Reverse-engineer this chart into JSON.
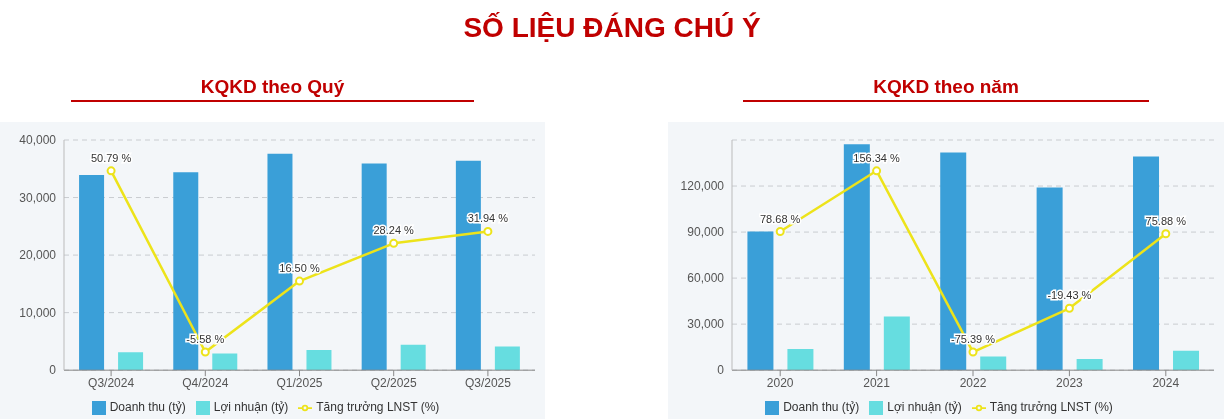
{
  "chart_data": [
    {
      "type": "bar",
      "title": "KQKD theo Quý",
      "annotations": [
        "SỐ LIỆU ĐÁNG CHÚ Ý"
      ],
      "categories": [
        "Q3/2024",
        "Q4/2024",
        "Q1/2025",
        "Q2/2025",
        "Q3/2025"
      ],
      "series": [
        {
          "name": "Doanh thu (tỷ)",
          "color": "#3a9fd8",
          "values": [
            33900,
            34400,
            37600,
            35900,
            36400
          ]
        },
        {
          "name": "Lợi nhuận (tỷ)",
          "color": "#66dde0",
          "values": [
            3100,
            2900,
            3500,
            4400,
            4100
          ]
        },
        {
          "name": "Tăng trưởng LNST (%)",
          "type": "line",
          "axis": "y2",
          "color": "#ede31a",
          "marker": "circle",
          "values": [
            50.79,
            -5.58,
            16.5,
            28.24,
            31.94
          ],
          "value_labels": [
            "50.79 %",
            "-5.58 %",
            "16.50 %",
            "28.24 %",
            "31.94 %"
          ]
        }
      ],
      "ylim": [
        0,
        40000
      ],
      "yticks": [
        0,
        {
          "value": 10000,
          "label": "10,000"
        },
        {
          "value": 20000,
          "label": "20,000"
        },
        {
          "value": 30000,
          "label": "30,000"
        },
        {
          "value": 40000,
          "label": "40,000"
        }
      ],
      "grid": "y",
      "legend": "bottom"
    },
    {
      "type": "bar",
      "title": "KQKD theo năm",
      "categories": [
        "2020",
        "2021",
        "2022",
        "2023",
        "2024"
      ],
      "series": [
        {
          "name": "Doanh thu (tỷ)",
          "color": "#3a9fd8",
          "values": [
            90400,
            147300,
            141800,
            119100,
            139200
          ]
        },
        {
          "name": "Lợi nhuận (tỷ)",
          "color": "#66dde0",
          "values": [
            13800,
            35000,
            8900,
            7200,
            12600
          ]
        },
        {
          "name": "Tăng trưởng LNST (%)",
          "type": "line",
          "axis": "y2",
          "color": "#ede31a",
          "marker": "circle",
          "values": [
            78.68,
            156.34,
            -75.39,
            -19.43,
            75.88
          ],
          "value_labels": [
            "78.68 %",
            "156.34 %",
            "-75.39 %",
            "-19.43 %",
            "75.88 %"
          ]
        }
      ],
      "ylim": [
        0,
        150000
      ],
      "yticks": [
        0,
        {
          "value": 30000,
          "label": "30,000"
        },
        {
          "value": 60000,
          "label": "60,000"
        },
        {
          "value": 90000,
          "label": "90,000"
        },
        {
          "value": 120000,
          "label": "120,000"
        }
      ],
      "grid": "y",
      "legend": "bottom"
    }
  ]
}
